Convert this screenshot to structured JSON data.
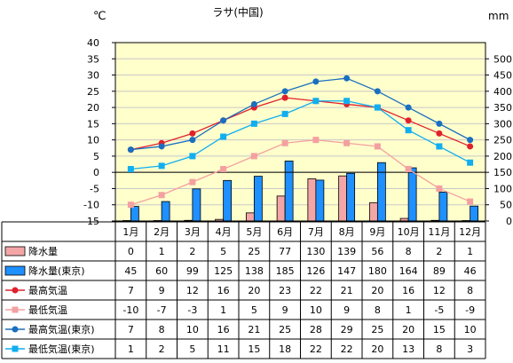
{
  "chart_data": {
    "type": "bar",
    "title": "ラサ(中国)",
    "left_unit": "℃",
    "right_unit": "mm",
    "categories": [
      "1月",
      "2月",
      "3月",
      "4月",
      "5月",
      "6月",
      "7月",
      "8月",
      "9月",
      "10月",
      "11月",
      "12月"
    ],
    "left_axis": {
      "min": -15,
      "max": 40,
      "step": 5,
      "ticks": [
        "-15",
        "-10",
        "-5",
        "0",
        "5",
        "10",
        "15",
        "20",
        "25",
        "30",
        "35",
        "40"
      ]
    },
    "right_axis": {
      "min": 0,
      "max": 550,
      "step": 50,
      "ticks": [
        "0",
        "50",
        "100",
        "150",
        "200",
        "250",
        "300",
        "350",
        "400",
        "450",
        "500"
      ]
    },
    "series": [
      {
        "name": "降水量",
        "kind": "bar",
        "axis": "right",
        "color": "#f4a6a6",
        "values": [
          0,
          1,
          2,
          5,
          25,
          77,
          130,
          139,
          56,
          8,
          2,
          1
        ]
      },
      {
        "name": "降水量(東京)",
        "kind": "bar",
        "axis": "right",
        "color": "#1e90ff",
        "values": [
          45,
          60,
          99,
          125,
          138,
          185,
          126,
          147,
          180,
          164,
          89,
          46
        ]
      },
      {
        "name": "最高気温",
        "kind": "line",
        "axis": "left",
        "color": "#e0202a",
        "marker": "circle",
        "values": [
          7,
          9,
          12,
          16,
          20,
          23,
          22,
          21,
          20,
          16,
          12,
          8
        ]
      },
      {
        "name": "最低気温",
        "kind": "line",
        "axis": "left",
        "color": "#f4a0a0",
        "marker": "square",
        "values": [
          -10,
          -7,
          -3,
          1,
          5,
          9,
          10,
          9,
          8,
          1,
          -5,
          -9
        ]
      },
      {
        "name": "最高気温(東京)",
        "kind": "line",
        "axis": "left",
        "color": "#1a6fc0",
        "marker": "circle",
        "values": [
          7,
          8,
          10,
          16,
          21,
          25,
          28,
          29,
          25,
          20,
          15,
          10
        ]
      },
      {
        "name": "最低気温(東京)",
        "kind": "line",
        "axis": "left",
        "color": "#11aef0",
        "marker": "square",
        "values": [
          1,
          2,
          5,
          11,
          15,
          18,
          22,
          22,
          20,
          13,
          8,
          3
        ]
      }
    ],
    "grid": true,
    "plot_background": "#ffffcc"
  }
}
